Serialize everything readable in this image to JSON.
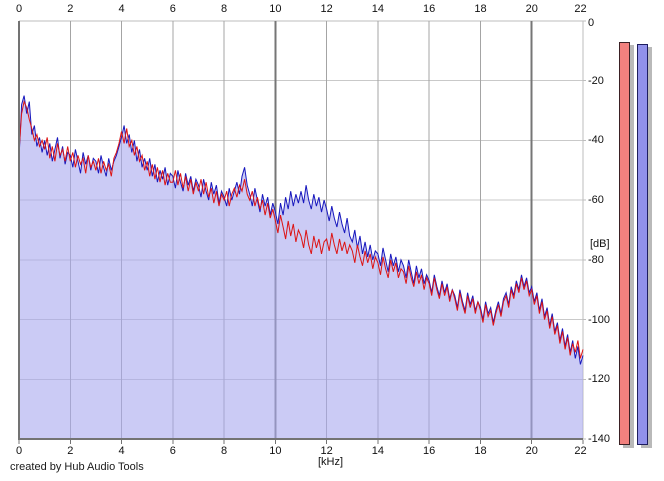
{
  "footer": {
    "credit": "created by Hub Audio Tools"
  },
  "chart_data": {
    "type": "line",
    "title": "",
    "xlabel": "[kHz]",
    "ylabel": "[dB]",
    "xlim": [
      0,
      22
    ],
    "ylim": [
      -140,
      0
    ],
    "x_ticks": [
      0,
      2,
      4,
      6,
      8,
      10,
      12,
      14,
      16,
      18,
      20,
      22
    ],
    "x_major_ticks": [
      10,
      20
    ],
    "y_ticks": [
      0,
      -20,
      -40,
      -60,
      -80,
      -100,
      -120,
      -140
    ],
    "grid": true,
    "legend": "none",
    "x_start": 0,
    "x_step": 0.1,
    "series": [
      {
        "name": "blue-spectrum-trace",
        "color": "#1717bd",
        "fill": "#a8a8ee",
        "values": [
          -46,
          -28,
          -25,
          -31,
          -27,
          -38,
          -35,
          -42,
          -39,
          -44,
          -40,
          -45,
          -41,
          -47,
          -43,
          -39,
          -46,
          -42,
          -48,
          -44,
          -45,
          -49,
          -43,
          -47,
          -51,
          -44,
          -48,
          -45,
          -50,
          -46,
          -47,
          -51,
          -45,
          -49,
          -52,
          -46,
          -50,
          -47,
          -45,
          -42,
          -39,
          -35,
          -41,
          -38,
          -44,
          -40,
          -47,
          -43,
          -49,
          -46,
          -50,
          -46,
          -52,
          -48,
          -54,
          -50,
          -53,
          -49,
          -55,
          -51,
          -52,
          -56,
          -50,
          -54,
          -57,
          -51,
          -55,
          -52,
          -57,
          -53,
          -55,
          -59,
          -53,
          -57,
          -60,
          -54,
          -58,
          -55,
          -61,
          -57,
          -59,
          -62,
          -56,
          -60,
          -57,
          -54,
          -58,
          -52,
          -49,
          -55,
          -58,
          -62,
          -56,
          -60,
          -64,
          -58,
          -62,
          -59,
          -65,
          -61,
          -64,
          -68,
          -61,
          -65,
          -59,
          -63,
          -57,
          -62,
          -58,
          -61,
          -57,
          -61,
          -55,
          -60,
          -63,
          -58,
          -62,
          -59,
          -64,
          -60,
          -63,
          -67,
          -62,
          -66,
          -69,
          -64,
          -68,
          -71,
          -66,
          -72,
          -74,
          -70,
          -76,
          -72,
          -78,
          -74,
          -79,
          -75,
          -80,
          -77,
          -78,
          -82,
          -76,
          -80,
          -84,
          -78,
          -82,
          -79,
          -84,
          -80,
          -82,
          -86,
          -80,
          -84,
          -88,
          -82,
          -86,
          -83,
          -88,
          -85,
          -87,
          -91,
          -85,
          -89,
          -92,
          -87,
          -91,
          -88,
          -93,
          -90,
          -92,
          -96,
          -90,
          -94,
          -97,
          -91,
          -95,
          -92,
          -97,
          -94,
          -96,
          -100,
          -94,
          -98,
          -96,
          -101,
          -97,
          -94,
          -98,
          -93,
          -91,
          -95,
          -89,
          -92,
          -87,
          -90,
          -85,
          -89,
          -86,
          -91,
          -89,
          -94,
          -91,
          -97,
          -93,
          -99,
          -96,
          -102,
          -98,
          -104,
          -101,
          -107,
          -103,
          -109,
          -105,
          -111,
          -107,
          -113,
          -109,
          -115,
          -112
        ]
      },
      {
        "name": "red-spectrum-trace",
        "color": "#dd1414",
        "fill": "none",
        "values": [
          -44,
          -31,
          -27,
          -29,
          -33,
          -36,
          -40,
          -38,
          -42,
          -40,
          -43,
          -39,
          -46,
          -42,
          -47,
          -41,
          -45,
          -43,
          -47,
          -42,
          -47,
          -44,
          -49,
          -45,
          -48,
          -46,
          -51,
          -45,
          -49,
          -47,
          -50,
          -46,
          -51,
          -47,
          -50,
          -48,
          -52,
          -46,
          -44,
          -41,
          -37,
          -41,
          -36,
          -42,
          -40,
          -45,
          -42,
          -47,
          -45,
          -50,
          -47,
          -52,
          -48,
          -53,
          -49,
          -54,
          -50,
          -55,
          -51,
          -54,
          -54,
          -50,
          -55,
          -51,
          -56,
          -52,
          -57,
          -53,
          -58,
          -54,
          -57,
          -53,
          -58,
          -54,
          -59,
          -56,
          -61,
          -57,
          -62,
          -58,
          -60,
          -57,
          -62,
          -58,
          -56,
          -59,
          -55,
          -57,
          -53,
          -58,
          -60,
          -57,
          -62,
          -59,
          -63,
          -60,
          -65,
          -61,
          -66,
          -63,
          -67,
          -71,
          -65,
          -69,
          -73,
          -67,
          -72,
          -68,
          -74,
          -70,
          -72,
          -76,
          -70,
          -75,
          -78,
          -72,
          -76,
          -73,
          -78,
          -74,
          -73,
          -77,
          -71,
          -75,
          -78,
          -73,
          -77,
          -74,
          -78,
          -75,
          -77,
          -81,
          -75,
          -79,
          -82,
          -77,
          -81,
          -78,
          -83,
          -79,
          -81,
          -85,
          -79,
          -83,
          -86,
          -80,
          -84,
          -81,
          -86,
          -83,
          -84,
          -88,
          -82,
          -86,
          -89,
          -84,
          -88,
          -85,
          -90,
          -86,
          -88,
          -92,
          -86,
          -90,
          -93,
          -88,
          -92,
          -89,
          -94,
          -90,
          -93,
          -97,
          -91,
          -95,
          -98,
          -92,
          -96,
          -93,
          -98,
          -94,
          -97,
          -101,
          -95,
          -99,
          -97,
          -102,
          -98,
          -95,
          -99,
          -94,
          -92,
          -96,
          -90,
          -93,
          -88,
          -91,
          -86,
          -90,
          -87,
          -92,
          -90,
          -95,
          -92,
          -98,
          -94,
          -100,
          -97,
          -103,
          -99,
          -105,
          -102,
          -108,
          -104,
          -110,
          -106,
          -112,
          -108,
          -111,
          -107,
          -113,
          -110
        ]
      }
    ]
  },
  "meters": {
    "red": {
      "name": "red-level-meter",
      "fill": "#f2817e",
      "border": "#3a2024"
    },
    "blue": {
      "name": "blue-level-meter",
      "fill": "#9191ea",
      "border": "#1d1d5e"
    }
  },
  "colors": {
    "grid_minor_v": "#a4a4a4",
    "grid_major_v": "#767676",
    "grid_h": "#c9c9c9",
    "axis": "#737373",
    "border_light": "#bdbdbd",
    "area_fill": "#a8a8ee"
  }
}
